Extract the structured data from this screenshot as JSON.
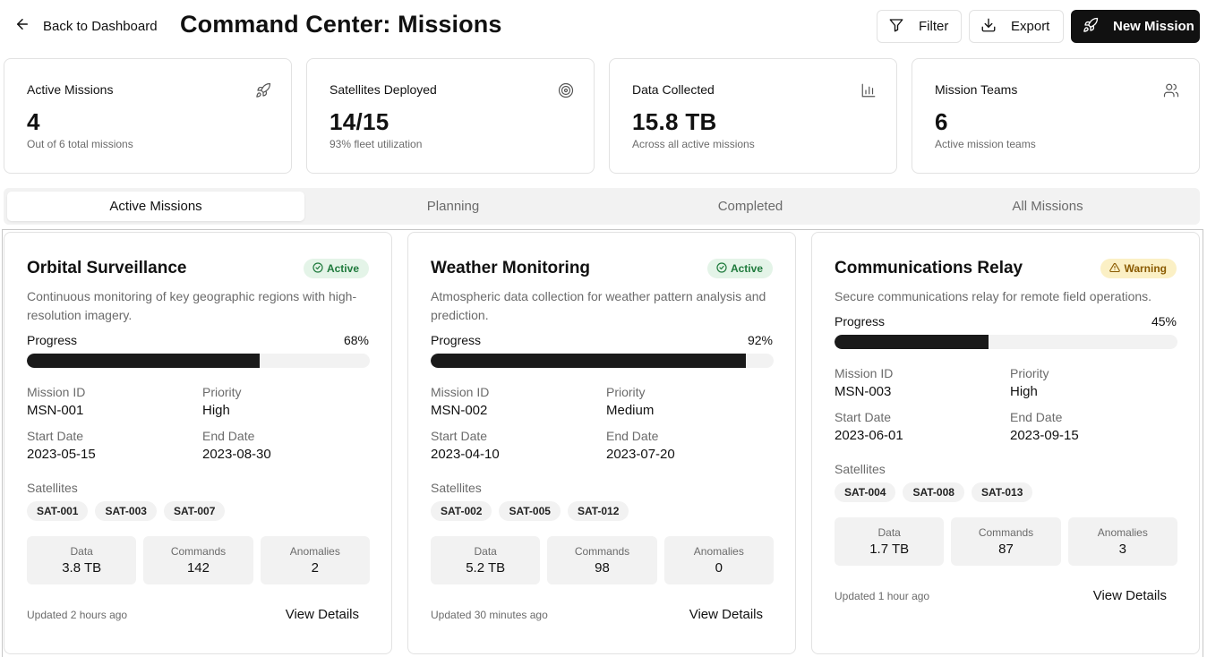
{
  "header": {
    "back_label": "Back to Dashboard",
    "title": "Command Center: Missions",
    "filter_label": "Filter",
    "export_label": "Export",
    "new_mission_label": "New Mission"
  },
  "stats": [
    {
      "label": "Active Missions",
      "value": "4",
      "sub": "Out of 6 total missions",
      "icon": "rocket-icon"
    },
    {
      "label": "Satellites Deployed",
      "value": "14/15",
      "sub": "93% fleet utilization",
      "icon": "target-icon"
    },
    {
      "label": "Data Collected",
      "value": "15.8 TB",
      "sub": "Across all active missions",
      "icon": "bar-chart-icon"
    },
    {
      "label": "Mission Teams",
      "value": "6",
      "sub": "Active mission teams",
      "icon": "users-icon"
    }
  ],
  "tabs": [
    {
      "label": "Active Missions",
      "active": true
    },
    {
      "label": "Planning",
      "active": false
    },
    {
      "label": "Completed",
      "active": false
    },
    {
      "label": "All Missions",
      "active": false
    }
  ],
  "field_labels": {
    "progress": "Progress",
    "mission_id": "Mission ID",
    "priority": "Priority",
    "start_date": "Start Date",
    "end_date": "End Date",
    "satellites": "Satellites",
    "data": "Data",
    "commands": "Commands",
    "anomalies": "Anomalies",
    "view_details": "View Details"
  },
  "missions": [
    {
      "title": "Orbital Surveillance",
      "status": "Active",
      "description": "Continuous monitoring of key geographic regions with high-resolution imagery.",
      "progress": 68,
      "progress_label": "68%",
      "mission_id": "MSN-001",
      "priority": "High",
      "start_date": "2023-05-15",
      "end_date": "2023-08-30",
      "satellites": [
        "SAT-001",
        "SAT-003",
        "SAT-007"
      ],
      "data": "3.8 TB",
      "commands": "142",
      "anomalies": "2",
      "updated": "Updated 2 hours ago"
    },
    {
      "title": "Weather Monitoring",
      "status": "Active",
      "description": "Atmospheric data collection for weather pattern analysis and prediction.",
      "progress": 92,
      "progress_label": "92%",
      "mission_id": "MSN-002",
      "priority": "Medium",
      "start_date": "2023-04-10",
      "end_date": "2023-07-20",
      "satellites": [
        "SAT-002",
        "SAT-005",
        "SAT-012"
      ],
      "data": "5.2 TB",
      "commands": "98",
      "anomalies": "0",
      "updated": "Updated 30 minutes ago"
    },
    {
      "title": "Communications Relay",
      "status": "Warning",
      "description": "Secure communications relay for remote field operations.",
      "progress": 45,
      "progress_label": "45%",
      "mission_id": "MSN-003",
      "priority": "High",
      "start_date": "2023-06-01",
      "end_date": "2023-09-15",
      "satellites": [
        "SAT-004",
        "SAT-008",
        "SAT-013"
      ],
      "data": "1.7 TB",
      "commands": "87",
      "anomalies": "3",
      "updated": "Updated 1 hour ago"
    }
  ]
}
